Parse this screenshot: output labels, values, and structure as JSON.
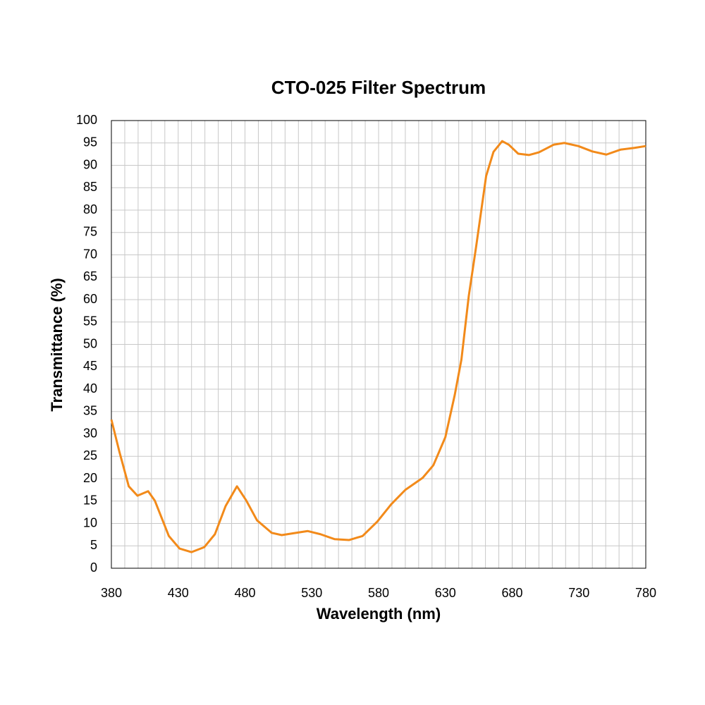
{
  "chart_data": {
    "type": "line",
    "title": "CTO-025 Filter Spectrum",
    "x_label": "Wavelength (nm)",
    "y_label": "Transmittance (%)",
    "x": [
      380,
      386,
      393,
      399.5,
      407.5,
      412.5,
      423,
      431,
      440,
      449.5,
      457.5,
      465.5,
      474,
      481,
      489,
      500,
      507.5,
      518,
      527,
      536.5,
      547,
      558,
      568,
      579,
      589.5,
      600,
      613,
      621,
      630,
      637,
      642,
      647.5,
      653,
      660.5,
      666,
      672.5,
      677.5,
      684.5,
      692.5,
      700,
      711,
      719,
      729.5,
      740,
      750.5,
      761,
      771.5,
      780
    ],
    "series": [
      {
        "name": "Transmittance",
        "color": "#f28a1a",
        "values": [
          33.2,
          26,
          18.3,
          16.2,
          17.2,
          15.1,
          7.2,
          4.4,
          3.6,
          4.7,
          7.6,
          13.9,
          18.3,
          15.1,
          10.7,
          7.9,
          7.4,
          7.9,
          8.3,
          7.6,
          6.5,
          6.3,
          7.2,
          10.4,
          14.3,
          17.5,
          20.2,
          23,
          29.3,
          38.7,
          46.6,
          60.8,
          71.8,
          87.6,
          93,
          95.4,
          94.6,
          92.6,
          92.3,
          92.9,
          94.6,
          95,
          94.3,
          93.1,
          92.4,
          93.5,
          93.9,
          94.3
        ]
      }
    ],
    "xlim": [
      380,
      780
    ],
    "xticks": [
      380,
      430,
      480,
      530,
      580,
      630,
      680,
      730,
      780
    ],
    "x_minor_ticks": [
      390,
      400,
      410,
      420,
      440,
      450,
      460,
      470,
      490,
      500,
      510,
      520,
      540,
      550,
      560,
      570,
      590,
      600,
      610,
      620,
      640,
      650,
      660,
      670,
      690,
      700,
      710,
      720,
      740,
      750,
      760,
      770
    ],
    "ylim": [
      0,
      100
    ],
    "yticks": [
      0,
      5,
      10,
      15,
      20,
      25,
      30,
      35,
      40,
      45,
      50,
      55,
      60,
      65,
      70,
      75,
      80,
      85,
      90,
      95,
      100
    ],
    "grid": true
  }
}
